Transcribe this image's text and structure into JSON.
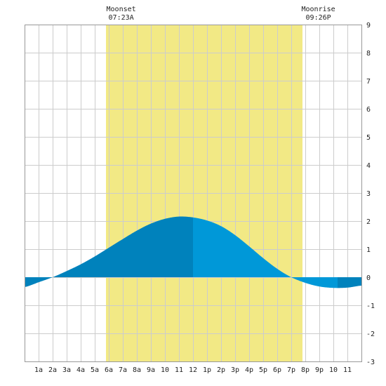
{
  "chart_data": {
    "type": "area",
    "title": "",
    "xlabel": "",
    "ylabel": "",
    "xlim": [
      0,
      24
    ],
    "ylim": [
      -3,
      9
    ],
    "grid": true,
    "y_ticks": [
      -3,
      -2,
      -1,
      0,
      1,
      2,
      3,
      4,
      5,
      6,
      7,
      8,
      9
    ],
    "x_ticks": [
      {
        "x": 1,
        "label": "1a"
      },
      {
        "x": 2,
        "label": "2a"
      },
      {
        "x": 3,
        "label": "3a"
      },
      {
        "x": 4,
        "label": "4a"
      },
      {
        "x": 5,
        "label": "5a"
      },
      {
        "x": 6,
        "label": "6a"
      },
      {
        "x": 7,
        "label": "7a"
      },
      {
        "x": 8,
        "label": "8a"
      },
      {
        "x": 9,
        "label": "9a"
      },
      {
        "x": 10,
        "label": "10"
      },
      {
        "x": 11,
        "label": "11"
      },
      {
        "x": 12,
        "label": "12"
      },
      {
        "x": 13,
        "label": "1p"
      },
      {
        "x": 14,
        "label": "2p"
      },
      {
        "x": 15,
        "label": "3p"
      },
      {
        "x": 16,
        "label": "4p"
      },
      {
        "x": 17,
        "label": "5p"
      },
      {
        "x": 18,
        "label": "6p"
      },
      {
        "x": 19,
        "label": "7p"
      },
      {
        "x": 20,
        "label": "8p"
      },
      {
        "x": 21,
        "label": "9p"
      },
      {
        "x": 22,
        "label": "10"
      },
      {
        "x": 23,
        "label": "11"
      }
    ],
    "daylight": [
      5.8,
      19.8
    ],
    "tide_series": {
      "x": [
        0,
        1,
        2,
        3,
        4,
        5,
        6,
        7,
        8,
        9,
        10,
        11,
        12,
        13,
        14,
        15,
        16,
        17,
        18,
        19,
        20,
        21,
        22,
        23,
        24
      ],
      "values": [
        -0.35,
        -0.18,
        0.0,
        0.22,
        0.46,
        0.74,
        1.05,
        1.36,
        1.66,
        1.91,
        2.08,
        2.16,
        2.13,
        2.02,
        1.82,
        1.5,
        1.1,
        0.68,
        0.3,
        0.0,
        -0.2,
        -0.33,
        -0.38,
        -0.37,
        -0.3
      ]
    },
    "shading_breaks": [
      12,
      22.3
    ],
    "colors": {
      "background": "#ffffff",
      "grid": "#cccccc",
      "daylight": "#f2e985",
      "tide_dark": "#0082bc",
      "tide_light": "#0098d8",
      "text": "#222222"
    },
    "moon_events": [
      {
        "name": "Moonset",
        "time": "07:23A",
        "x": 7.38
      },
      {
        "name": "Moonrise",
        "time": "09:26P",
        "x": 21.43
      }
    ]
  }
}
